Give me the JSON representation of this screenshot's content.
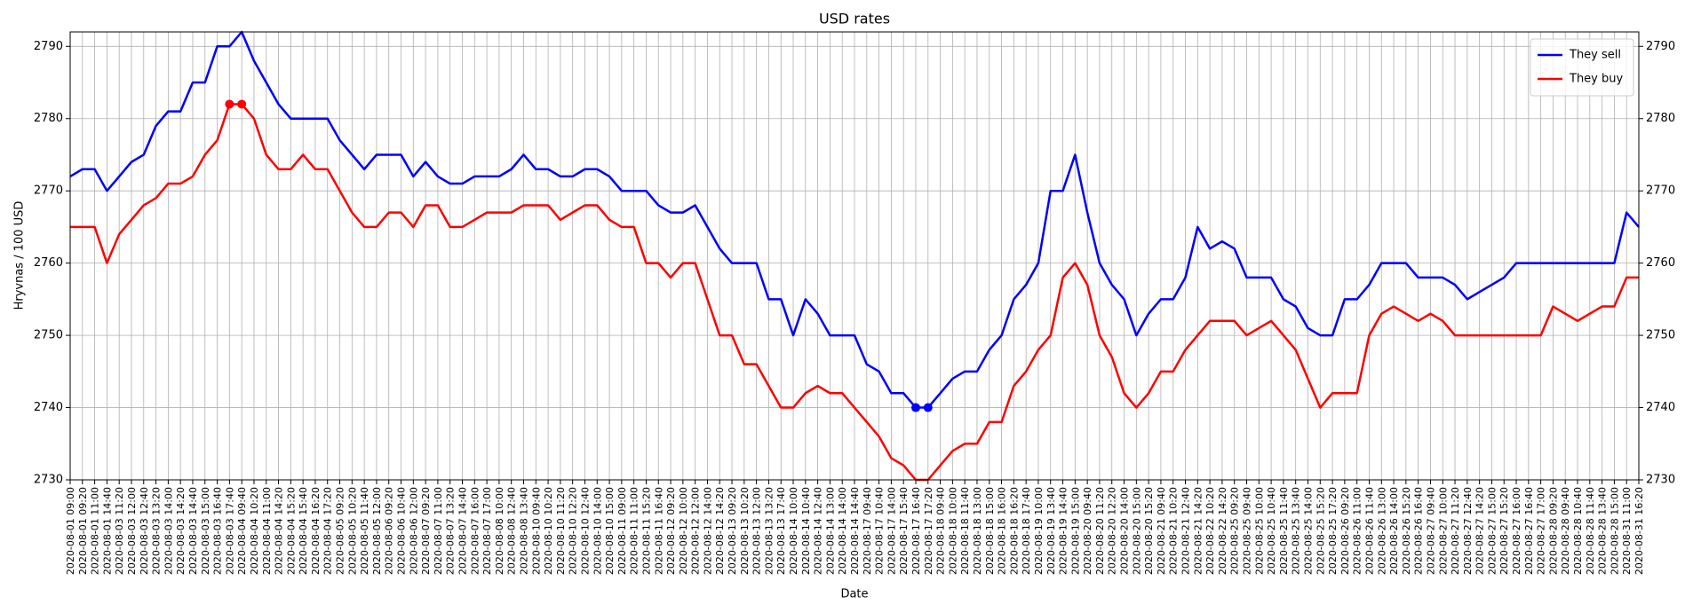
{
  "chart_data": {
    "type": "line",
    "title": "USD rates",
    "xlabel": "Date",
    "ylabel": "Hryvnas / 100 USD",
    "categories": [
      "2020-08-01 09:00",
      "2020-08-01 09:20",
      "2020-08-01 11:00",
      "2020-08-01 14:40",
      "2020-08-03 11:20",
      "2020-08-03 12:00",
      "2020-08-03 12:40",
      "2020-08-03 13:20",
      "2020-08-03 14:00",
      "2020-08-03 14:20",
      "2020-08-03 14:40",
      "2020-08-03 15:00",
      "2020-08-03 16:40",
      "2020-08-03 17:40",
      "2020-08-04 09:40",
      "2020-08-04 10:20",
      "2020-08-04 11:00",
      "2020-08-04 14:20",
      "2020-08-04 15:20",
      "2020-08-04 15:40",
      "2020-08-04 16:20",
      "2020-08-04 17:20",
      "2020-08-05 09:20",
      "2020-08-05 10:20",
      "2020-08-05 11:40",
      "2020-08-05 12:00",
      "2020-08-06 09:20",
      "2020-08-06 10:40",
      "2020-08-06 12:00",
      "2020-08-07 09:20",
      "2020-08-07 11:00",
      "2020-08-07 13:20",
      "2020-08-07 14:40",
      "2020-08-07 16:00",
      "2020-08-07 17:00",
      "2020-08-08 10:00",
      "2020-08-08 12:40",
      "2020-08-08 13:40",
      "2020-08-10 09:40",
      "2020-08-10 10:20",
      "2020-08-10 11:20",
      "2020-08-10 12:20",
      "2020-08-10 12:40",
      "2020-08-10 14:00",
      "2020-08-10 15:00",
      "2020-08-11 09:00",
      "2020-08-11 11:00",
      "2020-08-11 15:20",
      "2020-08-11 16:40",
      "2020-08-12 09:20",
      "2020-08-12 10:00",
      "2020-08-12 12:00",
      "2020-08-12 14:00",
      "2020-08-12 14:20",
      "2020-08-13 09:20",
      "2020-08-13 10:20",
      "2020-08-13 12:00",
      "2020-08-13 13:20",
      "2020-08-13 17:40",
      "2020-08-14 10:00",
      "2020-08-14 10:40",
      "2020-08-14 12:40",
      "2020-08-14 13:00",
      "2020-08-14 14:00",
      "2020-08-14 14:40",
      "2020-08-17 09:40",
      "2020-08-17 10:40",
      "2020-08-17 14:00",
      "2020-08-17 15:40",
      "2020-08-17 16:40",
      "2020-08-17 17:20",
      "2020-08-18 09:40",
      "2020-08-18 10:00",
      "2020-08-18 11:40",
      "2020-08-18 13:00",
      "2020-08-18 15:00",
      "2020-08-18 16:00",
      "2020-08-18 16:20",
      "2020-08-18 17:40",
      "2020-08-19 10:00",
      "2020-08-19 13:40",
      "2020-08-19 14:40",
      "2020-08-19 15:00",
      "2020-08-20 09:40",
      "2020-08-20 11:20",
      "2020-08-20 12:20",
      "2020-08-20 14:00",
      "2020-08-20 15:00",
      "2020-08-20 15:20",
      "2020-08-21 09:40",
      "2020-08-21 10:20",
      "2020-08-21 12:40",
      "2020-08-21 14:20",
      "2020-08-22 10:20",
      "2020-08-22 14:20",
      "2020-08-25 09:20",
      "2020-08-25 09:40",
      "2020-08-25 10:00",
      "2020-08-25 10:40",
      "2020-08-25 11:40",
      "2020-08-25 13:40",
      "2020-08-25 14:00",
      "2020-08-25 15:20",
      "2020-08-25 17:20",
      "2020-08-26 09:20",
      "2020-08-26 11:00",
      "2020-08-26 11:40",
      "2020-08-26 13:00",
      "2020-08-26 14:00",
      "2020-08-26 15:20",
      "2020-08-26 16:40",
      "2020-08-27 09:40",
      "2020-08-27 10:00",
      "2020-08-27 11:20",
      "2020-08-27 12:40",
      "2020-08-27 14:20",
      "2020-08-27 15:00",
      "2020-08-27 15:20",
      "2020-08-27 16:00",
      "2020-08-27 16:40",
      "2020-08-27 17:00",
      "2020-08-28 09:20",
      "2020-08-28 09:40",
      "2020-08-28 10:40",
      "2020-08-28 11:40",
      "2020-08-28 13:40",
      "2020-08-28 15:00",
      "2020-08-31 11:00",
      "2020-08-31 16:20"
    ],
    "series": [
      {
        "name": "They sell",
        "color": "#0000ff",
        "markers": [
          69,
          70
        ],
        "values": [
          2772,
          2773,
          2773,
          2770,
          2772,
          2774,
          2775,
          2779,
          2781,
          2781,
          2785,
          2785,
          2790,
          2790,
          2792,
          2788,
          2785,
          2782,
          2780,
          2780,
          2780,
          2780,
          2777,
          2775,
          2773,
          2775,
          2775,
          2775,
          2772,
          2774,
          2772,
          2771,
          2771,
          2772,
          2772,
          2772,
          2773,
          2775,
          2773,
          2773,
          2772,
          2772,
          2773,
          2773,
          2772,
          2770,
          2770,
          2770,
          2768,
          2767,
          2767,
          2768,
          2765,
          2762,
          2760,
          2760,
          2760,
          2755,
          2755,
          2750,
          2755,
          2753,
          2750,
          2750,
          2750,
          2746,
          2745,
          2742,
          2742,
          2740,
          2740,
          2742,
          2744,
          2745,
          2745,
          2748,
          2750,
          2755,
          2757,
          2760,
          2770,
          2770,
          2775,
          2767,
          2760,
          2757,
          2755,
          2750,
          2753,
          2755,
          2755,
          2758,
          2765,
          2762,
          2763,
          2762,
          2758,
          2758,
          2758,
          2755,
          2754,
          2751,
          2750,
          2750,
          2755,
          2755,
          2757,
          2760,
          2760,
          2760,
          2758,
          2758,
          2758,
          2757,
          2755,
          2756,
          2757,
          2758,
          2760,
          2760,
          2760,
          2760,
          2760,
          2760,
          2760,
          2760,
          2760,
          2767,
          2765
        ]
      },
      {
        "name": "They buy",
        "color": "#ff0000",
        "markers": [
          13,
          14
        ],
        "values": [
          2765,
          2765,
          2765,
          2760,
          2764,
          2766,
          2768,
          2769,
          2771,
          2771,
          2772,
          2775,
          2777,
          2782,
          2782,
          2780,
          2775,
          2773,
          2773,
          2775,
          2773,
          2773,
          2770,
          2767,
          2765,
          2765,
          2767,
          2767,
          2765,
          2768,
          2768,
          2765,
          2765,
          2766,
          2767,
          2767,
          2767,
          2768,
          2768,
          2768,
          2766,
          2767,
          2768,
          2768,
          2766,
          2765,
          2765,
          2760,
          2760,
          2758,
          2760,
          2760,
          2755,
          2750,
          2750,
          2746,
          2746,
          2743,
          2740,
          2740,
          2742,
          2743,
          2742,
          2742,
          2740,
          2738,
          2736,
          2733,
          2732,
          2730,
          2730,
          2732,
          2734,
          2735,
          2735,
          2738,
          2738,
          2743,
          2745,
          2748,
          2750,
          2758,
          2760,
          2757,
          2750,
          2747,
          2742,
          2740,
          2742,
          2745,
          2745,
          2748,
          2750,
          2752,
          2752,
          2752,
          2750,
          2751,
          2752,
          2750,
          2748,
          2744,
          2740,
          2742,
          2742,
          2742,
          2750,
          2753,
          2754,
          2753,
          2752,
          2753,
          2752,
          2750,
          2750,
          2750,
          2750,
          2750,
          2750,
          2750,
          2750,
          2754,
          2753,
          2752,
          2753,
          2754,
          2754,
          2758,
          2758
        ]
      }
    ],
    "ylim": [
      2730,
      2792
    ],
    "yticks": [
      2730,
      2740,
      2750,
      2760,
      2770,
      2780,
      2790
    ],
    "grid": true,
    "legend": "upper right"
  }
}
